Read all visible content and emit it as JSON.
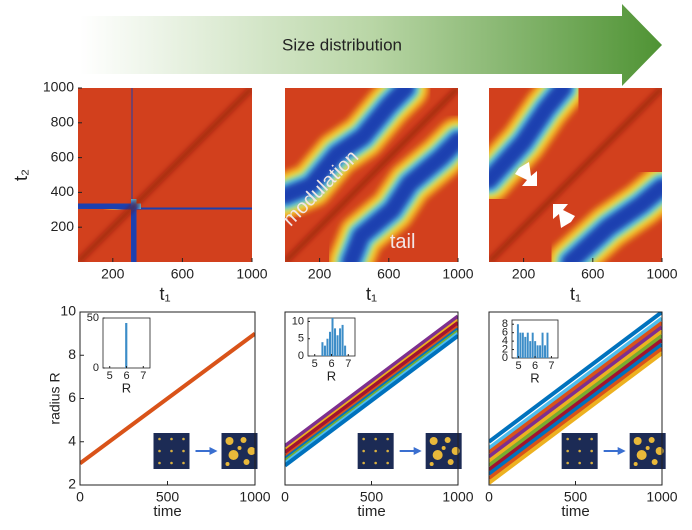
{
  "banner": {
    "text": "Size distribution"
  },
  "chart_data": [
    {
      "type": "heatmap",
      "x_label": "t₁",
      "y_label": "t₂",
      "xlim": [
        0,
        1000
      ],
      "ylim": [
        0,
        1000
      ],
      "xticks": [
        200,
        600,
        1000
      ],
      "yticks": [
        200,
        400,
        600,
        800,
        1000
      ]
    },
    {
      "type": "heatmap",
      "x_label": "t₁",
      "xlim": [
        0,
        1000
      ],
      "ylim": [
        0,
        1000
      ],
      "xticks": [
        200,
        600,
        1000
      ],
      "annotations": [
        "modulation",
        "tail"
      ]
    },
    {
      "type": "heatmap",
      "x_label": "t₁",
      "xlim": [
        0,
        1000
      ],
      "ylim": [
        0,
        1000
      ],
      "xticks": [
        200,
        600,
        1000
      ]
    },
    {
      "type": "line",
      "x_label": "time",
      "y_label": "radius  R",
      "xlim": [
        0,
        1000
      ],
      "ylim": [
        2,
        10
      ],
      "xticks": [
        0,
        500,
        1000
      ],
      "yticks": [
        2,
        4,
        6,
        8,
        10
      ],
      "x": [
        0,
        1000
      ],
      "series": [
        {
          "color": "#d95319",
          "values": [
            3,
            9
          ]
        }
      ]
    },
    {
      "type": "line",
      "x_label": "time",
      "xlim": [
        0,
        1000
      ],
      "ylim": [
        2,
        10
      ],
      "xticks": [
        0,
        500,
        1000
      ],
      "x": [
        0,
        1000
      ],
      "series": [
        {
          "color": "#7e2f8e",
          "values": [
            3.8,
            9.8
          ]
        },
        {
          "color": "#edb120",
          "values": [
            3.6,
            9.6
          ]
        },
        {
          "color": "#a2142f",
          "values": [
            3.5,
            9.5
          ]
        },
        {
          "color": "#d95319",
          "values": [
            3.3,
            9.3
          ]
        },
        {
          "color": "#0072bd",
          "values": [
            3.2,
            9.2
          ]
        },
        {
          "color": "#77ac30",
          "values": [
            3.1,
            9.1
          ]
        },
        {
          "color": "#4dbeee",
          "values": [
            3.0,
            9.0
          ]
        },
        {
          "color": "#0072bd",
          "values": [
            2.9,
            8.9
          ]
        }
      ]
    },
    {
      "type": "line",
      "x_label": "time",
      "xlim": [
        0,
        1000
      ],
      "ylim": [
        2,
        10
      ],
      "xticks": [
        0,
        500,
        1000
      ],
      "x": [
        0,
        1000
      ],
      "series": [
        {
          "color": "#0072bd",
          "values": [
            4.0,
            10.0
          ]
        },
        {
          "color": "#4dbeee",
          "values": [
            3.7,
            9.7
          ]
        },
        {
          "color": "#d95319",
          "values": [
            3.5,
            9.5
          ]
        },
        {
          "color": "#7e2f8e",
          "values": [
            3.3,
            9.3
          ]
        },
        {
          "color": "#edb120",
          "values": [
            3.1,
            9.1
          ]
        },
        {
          "color": "#77ac30",
          "values": [
            2.9,
            8.9
          ]
        },
        {
          "color": "#a2142f",
          "values": [
            2.7,
            8.7
          ]
        },
        {
          "color": "#0072bd",
          "values": [
            2.5,
            8.5
          ]
        },
        {
          "color": "#d95319",
          "values": [
            2.3,
            8.3
          ]
        },
        {
          "color": "#edb120",
          "values": [
            2.1,
            8.1
          ]
        }
      ]
    },
    {
      "type": "histogram",
      "x_label": "R",
      "xlim": [
        4.6,
        7.4
      ],
      "ylim": [
        0,
        50
      ],
      "xticks": [
        5,
        6,
        7
      ],
      "yticks": [
        0,
        50
      ],
      "color": "#3c8dc8",
      "bins": [
        5.92,
        6.08
      ],
      "values": [
        45
      ]
    },
    {
      "type": "histogram",
      "x_label": "R",
      "xlim": [
        4.6,
        7.4
      ],
      "ylim": [
        0,
        11
      ],
      "xticks": [
        5,
        6,
        7
      ],
      "yticks": [
        0,
        5,
        10
      ],
      "color": "#3c8dc8",
      "bins": [
        5.4,
        5.55,
        5.7,
        5.85,
        6.0,
        6.15,
        6.3,
        6.45,
        6.6,
        6.75,
        6.9
      ],
      "values": [
        4,
        3,
        5,
        7,
        11,
        8,
        6,
        8,
        9,
        3
      ]
    },
    {
      "type": "histogram",
      "x_label": "R",
      "xlim": [
        4.6,
        7.4
      ],
      "ylim": [
        0,
        9
      ],
      "xticks": [
        5,
        6,
        7
      ],
      "yticks": [
        0,
        2,
        4,
        6,
        8
      ],
      "color": "#3c8dc8",
      "bins": [
        4.9,
        5.05,
        5.2,
        5.35,
        5.5,
        5.65,
        5.8,
        5.95,
        6.1,
        6.25,
        6.4,
        6.55,
        6.7,
        6.85
      ],
      "values": [
        8,
        6,
        6,
        5,
        6,
        4,
        6,
        4,
        3,
        3,
        6,
        3,
        6
      ]
    }
  ]
}
